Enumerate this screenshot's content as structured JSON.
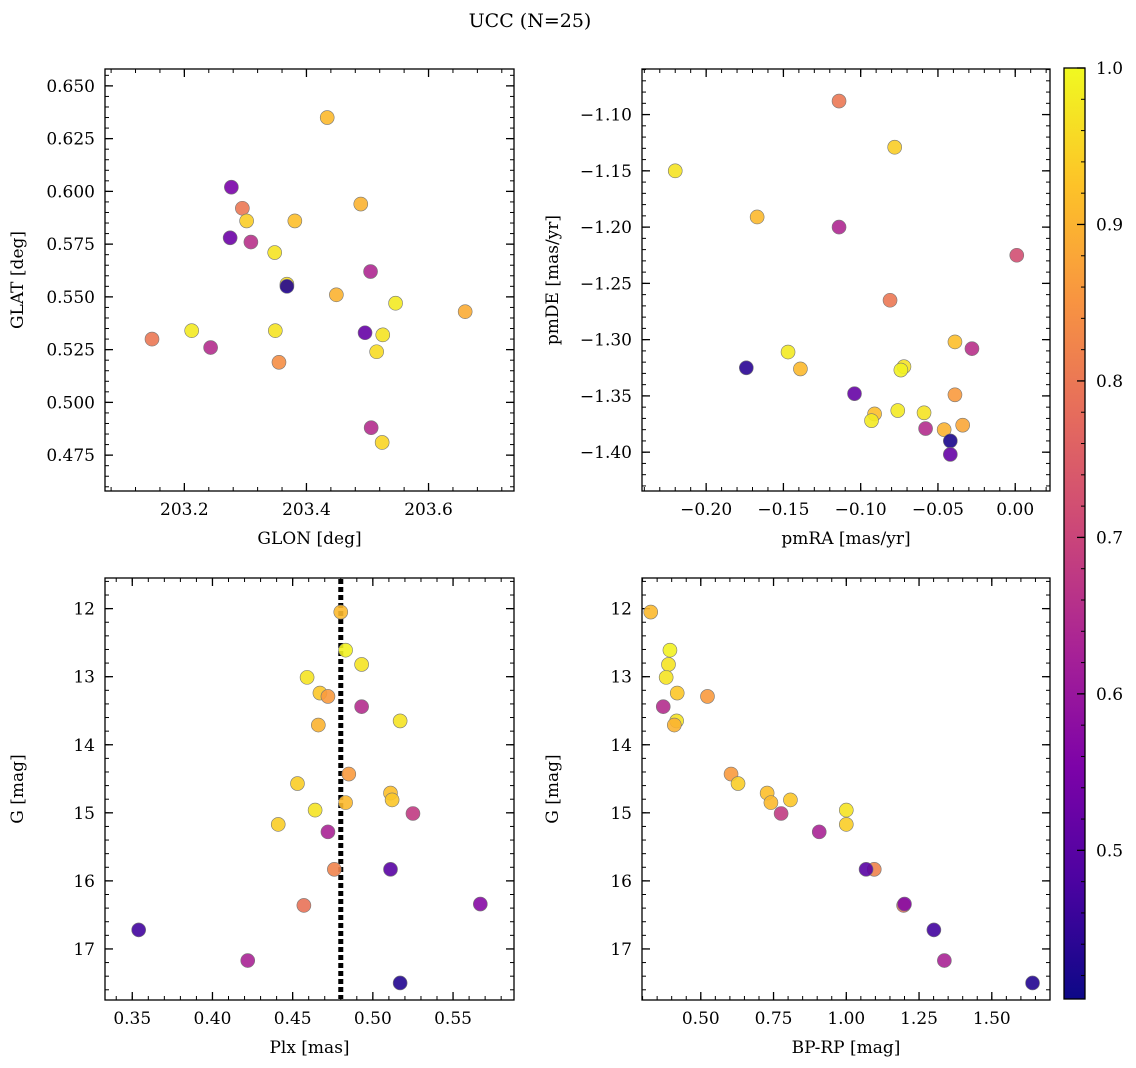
{
  "title": "UCC (N=25)",
  "colorbar": {
    "range": [
      0.405,
      1.0
    ],
    "ticks": [
      0.5,
      0.6,
      0.7,
      0.8,
      0.9,
      1.0
    ],
    "tick_labels": [
      "0.5",
      "0.6",
      "0.7",
      "0.8",
      "0.9",
      "1.0"
    ],
    "colormap": "plasma"
  },
  "chart_data": [
    {
      "type": "scatter",
      "id": "glon-glat",
      "xlabel": "GLON [deg]",
      "ylabel": "GLAT [deg]",
      "xlim": [
        203.07,
        203.74
      ],
      "ylim": [
        0.458,
        0.658
      ],
      "xticks": [
        203.2,
        203.4,
        203.6
      ],
      "xtick_labels": [
        "203.2",
        "203.4",
        "203.6"
      ],
      "yticks": [
        0.475,
        0.5,
        0.525,
        0.55,
        0.575,
        0.6,
        0.625,
        0.65
      ],
      "ytick_labels": [
        "0.475",
        "0.500",
        "0.525",
        "0.550",
        "0.575",
        "0.600",
        "0.625",
        "0.650"
      ],
      "points": [
        {
          "x": 203.434,
          "y": 0.635,
          "c": 0.91
        },
        {
          "x": 203.277,
          "y": 0.602,
          "c": 0.55
        },
        {
          "x": 203.295,
          "y": 0.592,
          "c": 0.8
        },
        {
          "x": 203.489,
          "y": 0.594,
          "c": 0.9
        },
        {
          "x": 203.302,
          "y": 0.586,
          "c": 0.94
        },
        {
          "x": 203.381,
          "y": 0.586,
          "c": 0.92
        },
        {
          "x": 203.275,
          "y": 0.578,
          "c": 0.53
        },
        {
          "x": 203.309,
          "y": 0.576,
          "c": 0.66
        },
        {
          "x": 203.348,
          "y": 0.571,
          "c": 0.97
        },
        {
          "x": 203.505,
          "y": 0.562,
          "c": 0.64
        },
        {
          "x": 203.368,
          "y": 0.556,
          "c": 0.96
        },
        {
          "x": 203.368,
          "y": 0.555,
          "c": 0.43
        },
        {
          "x": 203.449,
          "y": 0.551,
          "c": 0.9
        },
        {
          "x": 203.546,
          "y": 0.547,
          "c": 0.98
        },
        {
          "x": 203.66,
          "y": 0.543,
          "c": 0.89
        },
        {
          "x": 203.212,
          "y": 0.534,
          "c": 0.98
        },
        {
          "x": 203.349,
          "y": 0.534,
          "c": 0.97
        },
        {
          "x": 203.496,
          "y": 0.533,
          "c": 0.52
        },
        {
          "x": 203.525,
          "y": 0.532,
          "c": 0.97
        },
        {
          "x": 203.147,
          "y": 0.53,
          "c": 0.8
        },
        {
          "x": 203.243,
          "y": 0.526,
          "c": 0.65
        },
        {
          "x": 203.515,
          "y": 0.524,
          "c": 0.96
        },
        {
          "x": 203.355,
          "y": 0.519,
          "c": 0.84
        },
        {
          "x": 203.506,
          "y": 0.488,
          "c": 0.65
        },
        {
          "x": 203.524,
          "y": 0.481,
          "c": 0.95
        }
      ]
    },
    {
      "type": "scatter",
      "id": "pmra-pmde",
      "xlabel": "pmRA [mas/yr]",
      "ylabel": "pmDE [mas/yr]",
      "xlim": [
        -0.2415,
        0.0225
      ],
      "ylim": [
        -1.4345,
        -1.0595
      ],
      "xticks": [
        -0.2,
        -0.15,
        -0.1,
        -0.05,
        0.0
      ],
      "xtick_labels": [
        "−0.20",
        "−0.15",
        "−0.10",
        "−0.05",
        "0.00"
      ],
      "yticks": [
        -1.4,
        -1.35,
        -1.3,
        -1.25,
        -1.2,
        -1.15,
        -1.1
      ],
      "ytick_labels": [
        "−1.40",
        "−1.35",
        "−1.30",
        "−1.25",
        "−1.20",
        "−1.15",
        "−1.10"
      ],
      "points": [
        {
          "x": -0.114,
          "y": -1.088,
          "c": 0.8
        },
        {
          "x": -0.078,
          "y": -1.129,
          "c": 0.94
        },
        {
          "x": -0.22,
          "y": -1.15,
          "c": 0.97
        },
        {
          "x": -0.167,
          "y": -1.191,
          "c": 0.91
        },
        {
          "x": -0.114,
          "y": -1.2,
          "c": 0.64
        },
        {
          "x": 0.001,
          "y": -1.225,
          "c": 0.72
        },
        {
          "x": -0.081,
          "y": -1.265,
          "c": 0.8
        },
        {
          "x": -0.039,
          "y": -1.302,
          "c": 0.92
        },
        {
          "x": -0.028,
          "y": -1.308,
          "c": 0.66
        },
        {
          "x": -0.147,
          "y": -1.311,
          "c": 0.98
        },
        {
          "x": -0.174,
          "y": -1.325,
          "c": 0.44
        },
        {
          "x": -0.139,
          "y": -1.326,
          "c": 0.91
        },
        {
          "x": -0.072,
          "y": -1.324,
          "c": 0.97
        },
        {
          "x": -0.074,
          "y": -1.327,
          "c": 0.99
        },
        {
          "x": -0.104,
          "y": -1.348,
          "c": 0.52
        },
        {
          "x": -0.039,
          "y": -1.349,
          "c": 0.86
        },
        {
          "x": -0.076,
          "y": -1.363,
          "c": 0.98
        },
        {
          "x": -0.059,
          "y": -1.365,
          "c": 0.97
        },
        {
          "x": -0.091,
          "y": -1.366,
          "c": 0.92
        },
        {
          "x": -0.093,
          "y": -1.372,
          "c": 0.98
        },
        {
          "x": -0.034,
          "y": -1.376,
          "c": 0.88
        },
        {
          "x": -0.046,
          "y": -1.38,
          "c": 0.9
        },
        {
          "x": -0.058,
          "y": -1.379,
          "c": 0.65
        },
        {
          "x": -0.042,
          "y": -1.39,
          "c": 0.42
        },
        {
          "x": -0.042,
          "y": -1.402,
          "c": 0.52
        }
      ]
    },
    {
      "type": "scatter",
      "id": "plx-g",
      "xlabel": "Plx [mas]",
      "ylabel": "G [mag]",
      "xlim": [
        0.333,
        0.588
      ],
      "ylim": [
        17.75,
        11.55
      ],
      "y_inverted": true,
      "vline": 0.48,
      "xticks": [
        0.35,
        0.4,
        0.45,
        0.5,
        0.55
      ],
      "xtick_labels": [
        "0.35",
        "0.40",
        "0.45",
        "0.50",
        "0.55"
      ],
      "yticks": [
        12,
        13,
        14,
        15,
        16,
        17
      ],
      "ytick_labels": [
        "12",
        "13",
        "14",
        "15",
        "16",
        "17"
      ],
      "points": [
        {
          "x": 0.48,
          "y": 12.05,
          "c": 0.91
        },
        {
          "x": 0.483,
          "y": 12.61,
          "c": 0.99
        },
        {
          "x": 0.493,
          "y": 12.82,
          "c": 0.97
        },
        {
          "x": 0.459,
          "y": 13.01,
          "c": 0.97
        },
        {
          "x": 0.467,
          "y": 13.24,
          "c": 0.93
        },
        {
          "x": 0.472,
          "y": 13.29,
          "c": 0.86
        },
        {
          "x": 0.493,
          "y": 13.44,
          "c": 0.65
        },
        {
          "x": 0.517,
          "y": 13.65,
          "c": 0.97
        },
        {
          "x": 0.466,
          "y": 13.71,
          "c": 0.9
        },
        {
          "x": 0.485,
          "y": 14.43,
          "c": 0.86
        },
        {
          "x": 0.453,
          "y": 14.57,
          "c": 0.94
        },
        {
          "x": 0.511,
          "y": 14.71,
          "c": 0.92
        },
        {
          "x": 0.512,
          "y": 14.81,
          "c": 0.93
        },
        {
          "x": 0.483,
          "y": 14.85,
          "c": 0.91
        },
        {
          "x": 0.464,
          "y": 14.96,
          "c": 0.97
        },
        {
          "x": 0.525,
          "y": 15.01,
          "c": 0.68
        },
        {
          "x": 0.441,
          "y": 15.17,
          "c": 0.94
        },
        {
          "x": 0.472,
          "y": 15.28,
          "c": 0.63
        },
        {
          "x": 0.476,
          "y": 15.83,
          "c": 0.82
        },
        {
          "x": 0.511,
          "y": 15.83,
          "c": 0.5
        },
        {
          "x": 0.457,
          "y": 16.36,
          "c": 0.79
        },
        {
          "x": 0.567,
          "y": 16.34,
          "c": 0.57
        },
        {
          "x": 0.354,
          "y": 16.72,
          "c": 0.47
        },
        {
          "x": 0.422,
          "y": 17.17,
          "c": 0.63
        },
        {
          "x": 0.517,
          "y": 17.5,
          "c": 0.43
        }
      ]
    },
    {
      "type": "scatter",
      "id": "bprp-g",
      "xlabel": "BP-RP [mag]",
      "ylabel": "G [mag]",
      "xlim": [
        0.298,
        1.7
      ],
      "ylim": [
        17.75,
        11.55
      ],
      "y_inverted": true,
      "xticks": [
        0.5,
        0.75,
        1.0,
        1.25,
        1.5
      ],
      "xtick_labels": [
        "0.50",
        "0.75",
        "1.00",
        "1.25",
        "1.50"
      ],
      "yticks": [
        12,
        13,
        14,
        15,
        16,
        17
      ],
      "ytick_labels": [
        "12",
        "13",
        "14",
        "15",
        "16",
        "17"
      ],
      "points": [
        {
          "x": 0.328,
          "y": 12.05,
          "c": 0.91
        },
        {
          "x": 0.394,
          "y": 12.61,
          "c": 0.99
        },
        {
          "x": 0.389,
          "y": 12.82,
          "c": 0.97
        },
        {
          "x": 0.381,
          "y": 13.01,
          "c": 0.97
        },
        {
          "x": 0.419,
          "y": 13.24,
          "c": 0.93
        },
        {
          "x": 0.523,
          "y": 13.29,
          "c": 0.86
        },
        {
          "x": 0.371,
          "y": 13.44,
          "c": 0.65
        },
        {
          "x": 0.417,
          "y": 13.65,
          "c": 0.97
        },
        {
          "x": 0.409,
          "y": 13.71,
          "c": 0.9
        },
        {
          "x": 0.604,
          "y": 14.43,
          "c": 0.86
        },
        {
          "x": 0.628,
          "y": 14.57,
          "c": 0.94
        },
        {
          "x": 0.728,
          "y": 14.71,
          "c": 0.92
        },
        {
          "x": 0.808,
          "y": 14.81,
          "c": 0.93
        },
        {
          "x": 0.741,
          "y": 14.85,
          "c": 0.91
        },
        {
          "x": 1.0,
          "y": 14.96,
          "c": 0.97
        },
        {
          "x": 0.776,
          "y": 15.01,
          "c": 0.68
        },
        {
          "x": 1.0,
          "y": 15.17,
          "c": 0.94
        },
        {
          "x": 0.907,
          "y": 15.28,
          "c": 0.63
        },
        {
          "x": 1.096,
          "y": 15.83,
          "c": 0.82
        },
        {
          "x": 1.068,
          "y": 15.83,
          "c": 0.5
        },
        {
          "x": 1.197,
          "y": 16.36,
          "c": 0.79
        },
        {
          "x": 1.2,
          "y": 16.34,
          "c": 0.57
        },
        {
          "x": 1.301,
          "y": 16.72,
          "c": 0.47
        },
        {
          "x": 1.337,
          "y": 17.17,
          "c": 0.63
        },
        {
          "x": 1.64,
          "y": 17.5,
          "c": 0.43
        }
      ]
    }
  ]
}
